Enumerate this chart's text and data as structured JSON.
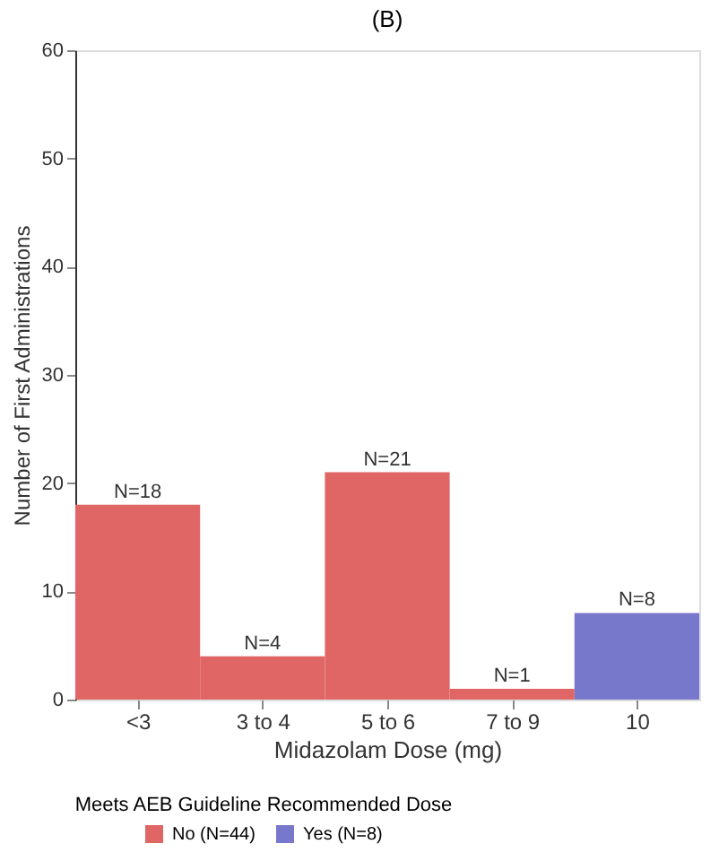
{
  "chart_data": {
    "type": "bar",
    "title": "(B)",
    "xlabel": "Midazolam Dose (mg)",
    "ylabel": "Number of First Administrations",
    "categories": [
      "<3",
      "3 to 4",
      "5 to 6",
      "7 to 9",
      "10"
    ],
    "series": [
      {
        "name": "No (N=44)",
        "color": "#e06666",
        "values": [
          18,
          4,
          21,
          1,
          null
        ],
        "value_labels": [
          "N=18",
          "N=4",
          "N=21",
          "N=1",
          null
        ]
      },
      {
        "name": "Yes (N=8)",
        "color": "#7777cc",
        "values": [
          null,
          null,
          null,
          null,
          8
        ],
        "value_labels": [
          null,
          null,
          null,
          null,
          "N=8"
        ]
      }
    ],
    "legend_title": "Meets AEB Guideline Recommended Dose",
    "legend": "bottom",
    "ylim": [
      0,
      60
    ],
    "yticks": [
      0,
      10,
      20,
      30,
      40,
      50,
      60
    ],
    "grid": false
  }
}
